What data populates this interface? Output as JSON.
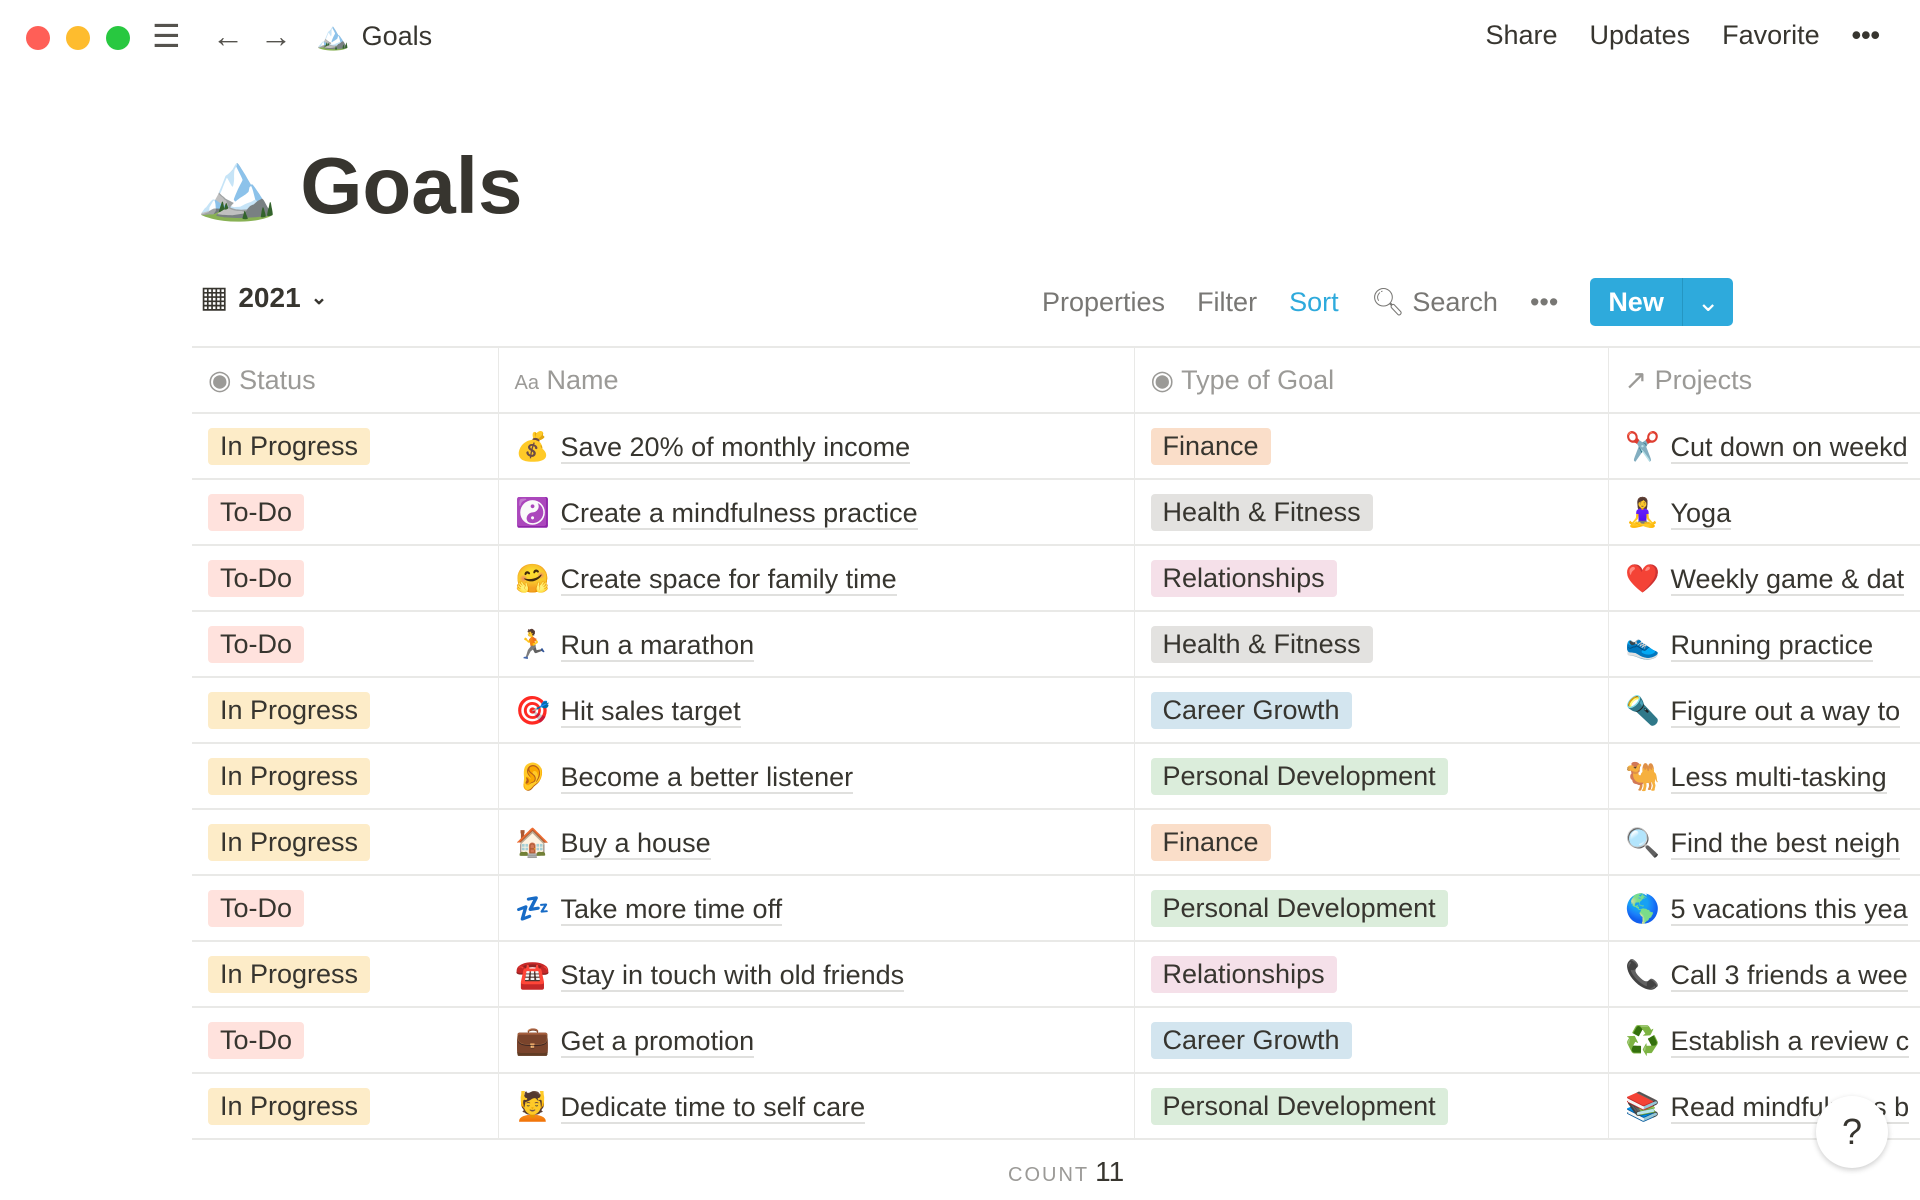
{
  "window": {
    "breadcrumb_emoji": "🏔️",
    "breadcrumb": "Goals",
    "actions": [
      "Share",
      "Updates",
      "Favorite"
    ],
    "more": "•••"
  },
  "page": {
    "emoji": "🏔️",
    "title": "Goals"
  },
  "view": {
    "name": "2021",
    "properties": "Properties",
    "filter": "Filter",
    "sort": "Sort",
    "search": "Search",
    "more": "•••",
    "new": "New",
    "accent": "#2eaadc"
  },
  "columns": {
    "status": "Status",
    "name": "Name",
    "type": "Type of Goal",
    "projects": "Projects"
  },
  "rows": [
    {
      "status": "In Progress",
      "emoji": "💰",
      "name": "Save 20% of monthly income",
      "type": "Finance",
      "pemoji": "✂️",
      "project": "Cut down on weekd"
    },
    {
      "status": "To-Do",
      "emoji": "☯️",
      "name": "Create a mindfulness practice",
      "type": "Health & Fitness",
      "pemoji": "🧘‍♀️",
      "project": "Yoga"
    },
    {
      "status": "To-Do",
      "emoji": "🤗",
      "name": "Create space for family time",
      "type": "Relationships",
      "pemoji": "❤️",
      "project": "Weekly game & dat"
    },
    {
      "status": "To-Do",
      "emoji": "🏃",
      "name": "Run a marathon",
      "type": "Health & Fitness",
      "pemoji": "👟",
      "project": "Running practice"
    },
    {
      "status": "In Progress",
      "emoji": "🎯",
      "name": "Hit sales target",
      "type": "Career Growth",
      "pemoji": "🔦",
      "project": "Figure out a way to"
    },
    {
      "status": "In Progress",
      "emoji": "👂",
      "name": "Become a better listener",
      "type": "Personal Development",
      "pemoji": "🐫",
      "project": "Less multi-tasking"
    },
    {
      "status": "In Progress",
      "emoji": "🏠",
      "name": "Buy a house",
      "type": "Finance",
      "pemoji": "🔍",
      "project": "Find the best neigh"
    },
    {
      "status": "To-Do",
      "emoji": "💤",
      "name": "Take more time off",
      "type": "Personal Development",
      "pemoji": "🌎",
      "project": "5 vacations this yea"
    },
    {
      "status": "In Progress",
      "emoji": "☎️",
      "name": "Stay in touch with old friends",
      "type": "Relationships",
      "pemoji": "📞",
      "project": "Call 3 friends a wee"
    },
    {
      "status": "To-Do",
      "emoji": "💼",
      "name": "Get a promotion",
      "type": "Career Growth",
      "pemoji": "♻️",
      "project": "Establish a review c"
    },
    {
      "status": "In Progress",
      "emoji": "💆",
      "name": "Dedicate time to self care",
      "type": "Personal Development",
      "pemoji": "📚",
      "project": "Read mindfulness b"
    }
  ],
  "tag_colors": {
    "In Progress": "#fdecc8",
    "To-Do": "#ffe2dd",
    "Finance": "#fadec9",
    "Health & Fitness": "#e3e2e0",
    "Relationships": "#f5e0e9",
    "Career Growth": "#d3e5ef",
    "Personal Development": "#dbeddb"
  },
  "footer": {
    "count_label": "COUNT",
    "count": "11",
    "help": "?"
  }
}
